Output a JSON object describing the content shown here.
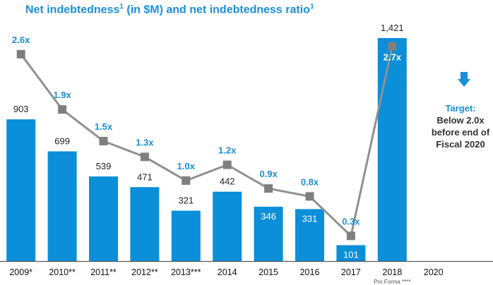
{
  "title": {
    "main": "Net indebtedness",
    "sup1": "1",
    "mid": " (in $M) and net indebtedness ratio",
    "sup2": "1"
  },
  "chart_data": {
    "type": "bar",
    "categories": [
      "2009*",
      "2010**",
      "2011**",
      "2012**",
      "2013***",
      "2014",
      "2015",
      "2016",
      "2017",
      "2018",
      "2020"
    ],
    "sub_labels": [
      "",
      "",
      "",
      "",
      "",
      "",
      "",
      "",
      "",
      "Pro Forma ****",
      ""
    ],
    "series": [
      {
        "values": [
          903,
          699,
          539,
          471,
          321,
          442,
          346,
          331,
          101,
          1421,
          null
        ],
        "labels": [
          "903",
          "699",
          "539",
          "471",
          "321",
          "442",
          "346",
          "331",
          "101",
          "1,421",
          ""
        ]
      },
      {
        "values": [
          2.6,
          1.9,
          1.5,
          1.3,
          1.0,
          1.2,
          0.9,
          0.8,
          0.3,
          2.7,
          null
        ],
        "labels": [
          "2.6x",
          "1.9x",
          "1.5x",
          "1.3x",
          "1.0x",
          "1.2x",
          "0.9x",
          "0.8x",
          "0.3x",
          "2.7x",
          ""
        ]
      }
    ],
    "colors": {
      "bar": "#0b8fd8",
      "line": "#909090",
      "marker": "#7f7f7f",
      "ratio_label": "#1a8fd8",
      "value_label": "#222222"
    }
  },
  "target": {
    "head": "Target:",
    "body": "Below 2.0x before end of Fiscal 2020",
    "icon": "down-arrow-icon",
    "color": "#1a8fd8"
  }
}
